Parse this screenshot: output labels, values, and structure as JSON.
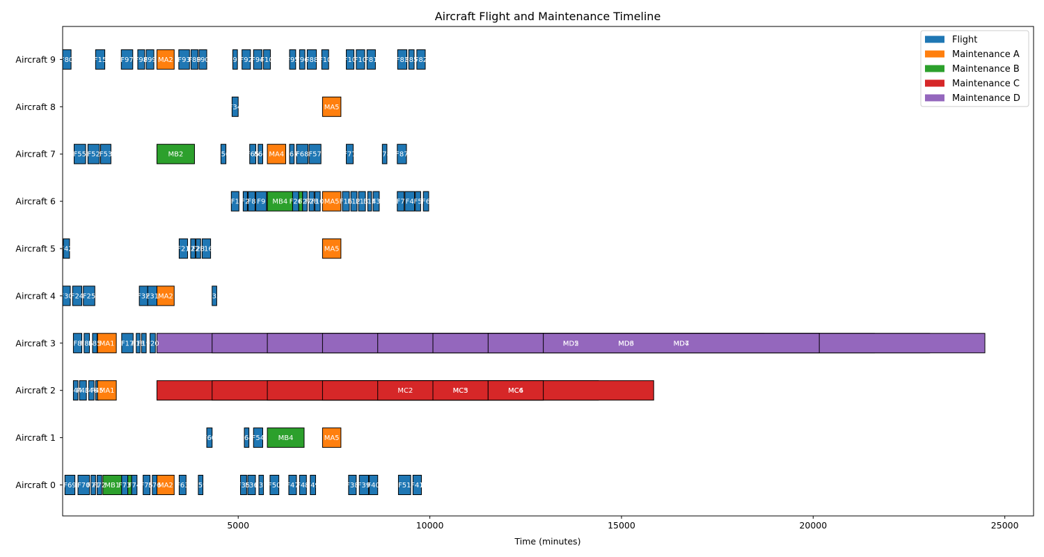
{
  "chart_data": {
    "type": "gantt",
    "title": "Aircraft Flight and Maintenance Timeline",
    "xlabel": "Time (minutes)",
    "ylabel": "",
    "xlim": [
      420,
      25750
    ],
    "xticks": [
      5000,
      10000,
      15000,
      20000,
      25000
    ],
    "y_categories": [
      "Aircraft 0",
      "Aircraft 1",
      "Aircraft 2",
      "Aircraft 3",
      "Aircraft 4",
      "Aircraft 5",
      "Aircraft 6",
      "Aircraft 7",
      "Aircraft 8",
      "Aircraft 9"
    ],
    "grid": false,
    "legend_position": "upper right",
    "legend": [
      {
        "key": "flight",
        "label": "Flight",
        "color": "#1f77b4"
      },
      {
        "key": "maint_a",
        "label": "Maintenance A",
        "color": "#ff7f0e"
      },
      {
        "key": "maint_b",
        "label": "Maintenance B",
        "color": "#2ca02c"
      },
      {
        "key": "maint_c",
        "label": "Maintenance C",
        "color": "#d62728"
      },
      {
        "key": "maint_d",
        "label": "Maintenance D",
        "color": "#9467bd"
      }
    ],
    "tasks": [
      {
        "aircraft": 9,
        "kind": "flight",
        "label": "F80",
        "start": 420,
        "end": 640
      },
      {
        "aircraft": 9,
        "kind": "flight",
        "label": "F15",
        "start": 1280,
        "end": 1520
      },
      {
        "aircraft": 9,
        "kind": "flight",
        "label": "F97",
        "start": 1950,
        "end": 2250
      },
      {
        "aircraft": 9,
        "kind": "flight",
        "label": "F98",
        "start": 2380,
        "end": 2560
      },
      {
        "aircraft": 9,
        "kind": "flight",
        "label": "F99",
        "start": 2600,
        "end": 2800
      },
      {
        "aircraft": 9,
        "kind": "maint_a",
        "label": "MA2",
        "start": 2880,
        "end": 3330
      },
      {
        "aircraft": 9,
        "kind": "flight",
        "label": "F93",
        "start": 3450,
        "end": 3730
      },
      {
        "aircraft": 9,
        "kind": "flight",
        "label": "F89",
        "start": 3770,
        "end": 3950
      },
      {
        "aircraft": 9,
        "kind": "flight",
        "label": "F90",
        "start": 3980,
        "end": 4180
      },
      {
        "aircraft": 9,
        "kind": "flight",
        "label": "F91",
        "start": 4860,
        "end": 4980
      },
      {
        "aircraft": 9,
        "kind": "flight",
        "label": "F92",
        "start": 5100,
        "end": 5320
      },
      {
        "aircraft": 9,
        "kind": "flight",
        "label": "F94",
        "start": 5400,
        "end": 5620
      },
      {
        "aircraft": 9,
        "kind": "flight",
        "label": "F10",
        "start": 5660,
        "end": 5840
      },
      {
        "aircraft": 9,
        "kind": "flight",
        "label": "F95",
        "start": 6340,
        "end": 6500
      },
      {
        "aircraft": 9,
        "kind": "flight",
        "label": "F96",
        "start": 6600,
        "end": 6740
      },
      {
        "aircraft": 9,
        "kind": "flight",
        "label": "F88",
        "start": 6800,
        "end": 7040
      },
      {
        "aircraft": 9,
        "kind": "flight",
        "label": "F10",
        "start": 7180,
        "end": 7360
      },
      {
        "aircraft": 9,
        "kind": "flight",
        "label": "F10",
        "start": 7820,
        "end": 8020
      },
      {
        "aircraft": 9,
        "kind": "flight",
        "label": "F10",
        "start": 8080,
        "end": 8300
      },
      {
        "aircraft": 9,
        "kind": "flight",
        "label": "F81",
        "start": 8360,
        "end": 8580
      },
      {
        "aircraft": 9,
        "kind": "flight",
        "label": "F83",
        "start": 9160,
        "end": 9400
      },
      {
        "aircraft": 9,
        "kind": "flight",
        "label": "F85",
        "start": 9450,
        "end": 9590
      },
      {
        "aircraft": 9,
        "kind": "flight",
        "label": "F82",
        "start": 9660,
        "end": 9880
      },
      {
        "aircraft": 8,
        "kind": "flight",
        "label": "F34",
        "start": 4840,
        "end": 5000
      },
      {
        "aircraft": 8,
        "kind": "maint_a",
        "label": "MA5",
        "start": 7200,
        "end": 7680
      },
      {
        "aircraft": 7,
        "kind": "flight",
        "label": "F55",
        "start": 720,
        "end": 1020
      },
      {
        "aircraft": 7,
        "kind": "flight",
        "label": "F52",
        "start": 1080,
        "end": 1380
      },
      {
        "aircraft": 7,
        "kind": "flight",
        "label": "F53",
        "start": 1410,
        "end": 1680
      },
      {
        "aircraft": 7,
        "kind": "maint_b",
        "label": "MB2",
        "start": 2880,
        "end": 3860
      },
      {
        "aircraft": 7,
        "kind": "flight",
        "label": "F56",
        "start": 4550,
        "end": 4680
      },
      {
        "aircraft": 7,
        "kind": "flight",
        "label": "F65",
        "start": 5300,
        "end": 5460
      },
      {
        "aircraft": 7,
        "kind": "flight",
        "label": "F66",
        "start": 5520,
        "end": 5640
      },
      {
        "aircraft": 7,
        "kind": "maint_a",
        "label": "MA4",
        "start": 5760,
        "end": 6240
      },
      {
        "aircraft": 7,
        "kind": "flight",
        "label": "F67",
        "start": 6340,
        "end": 6460
      },
      {
        "aircraft": 7,
        "kind": "flight",
        "label": "F68",
        "start": 6520,
        "end": 6820
      },
      {
        "aircraft": 7,
        "kind": "flight",
        "label": "F57",
        "start": 6850,
        "end": 7160
      },
      {
        "aircraft": 7,
        "kind": "flight",
        "label": "F77",
        "start": 7820,
        "end": 8000
      },
      {
        "aircraft": 7,
        "kind": "flight",
        "label": "F78",
        "start": 8760,
        "end": 8880
      },
      {
        "aircraft": 7,
        "kind": "flight",
        "label": "F87",
        "start": 9150,
        "end": 9390
      },
      {
        "aircraft": 6,
        "kind": "flight",
        "label": "F1",
        "start": 4820,
        "end": 5020
      },
      {
        "aircraft": 6,
        "kind": "flight",
        "label": "F2",
        "start": 5130,
        "end": 5240
      },
      {
        "aircraft": 6,
        "kind": "flight",
        "label": "F8",
        "start": 5260,
        "end": 5440
      },
      {
        "aircraft": 6,
        "kind": "flight",
        "label": "F9",
        "start": 5460,
        "end": 5740
      },
      {
        "aircraft": 6,
        "kind": "maint_b",
        "label": "MB4",
        "start": 5760,
        "end": 6420
      },
      {
        "aircraft": 6,
        "kind": "flight",
        "label": "F26",
        "start": 6420,
        "end": 6580
      },
      {
        "aircraft": 6,
        "kind": "maint_b",
        "label": "",
        "start": 6580,
        "end": 6680
      },
      {
        "aircraft": 6,
        "kind": "flight",
        "label": "F27",
        "start": 6680,
        "end": 6800
      },
      {
        "aircraft": 6,
        "kind": "flight",
        "label": "F28",
        "start": 6850,
        "end": 6980
      },
      {
        "aircraft": 6,
        "kind": "flight",
        "label": "F10",
        "start": 7000,
        "end": 7140
      },
      {
        "aircraft": 6,
        "kind": "maint_a",
        "label": "MA5",
        "start": 7200,
        "end": 7680
      },
      {
        "aircraft": 6,
        "kind": "flight",
        "label": "F16",
        "start": 7720,
        "end": 7900
      },
      {
        "aircraft": 6,
        "kind": "flight",
        "label": "F12",
        "start": 7940,
        "end": 8100
      },
      {
        "aircraft": 6,
        "kind": "flight",
        "label": "F13",
        "start": 8140,
        "end": 8320
      },
      {
        "aircraft": 6,
        "kind": "flight",
        "label": "F14",
        "start": 8380,
        "end": 8480
      },
      {
        "aircraft": 6,
        "kind": "flight",
        "label": "F3",
        "start": 8520,
        "end": 8680
      },
      {
        "aircraft": 6,
        "kind": "flight",
        "label": "F7",
        "start": 9150,
        "end": 9330
      },
      {
        "aircraft": 6,
        "kind": "flight",
        "label": "F4",
        "start": 9350,
        "end": 9600
      },
      {
        "aircraft": 6,
        "kind": "flight",
        "label": "F5",
        "start": 9620,
        "end": 9760
      },
      {
        "aircraft": 6,
        "kind": "flight",
        "label": "F6",
        "start": 9830,
        "end": 9970
      },
      {
        "aircraft": 5,
        "kind": "flight",
        "label": "F42",
        "start": 440,
        "end": 600
      },
      {
        "aircraft": 5,
        "kind": "flight",
        "label": "F21",
        "start": 3460,
        "end": 3680
      },
      {
        "aircraft": 5,
        "kind": "flight",
        "label": "F22",
        "start": 3760,
        "end": 3880
      },
      {
        "aircraft": 5,
        "kind": "flight",
        "label": "F23",
        "start": 3900,
        "end": 4020
      },
      {
        "aircraft": 5,
        "kind": "flight",
        "label": "F16",
        "start": 4060,
        "end": 4280
      },
      {
        "aircraft": 5,
        "kind": "maint_a",
        "label": "MA5",
        "start": 7200,
        "end": 7680
      },
      {
        "aircraft": 4,
        "kind": "flight",
        "label": "F30",
        "start": 420,
        "end": 620
      },
      {
        "aircraft": 4,
        "kind": "flight",
        "label": "F24",
        "start": 680,
        "end": 920
      },
      {
        "aircraft": 4,
        "kind": "flight",
        "label": "F25",
        "start": 960,
        "end": 1260
      },
      {
        "aircraft": 4,
        "kind": "flight",
        "label": "F32",
        "start": 2420,
        "end": 2640
      },
      {
        "aircraft": 4,
        "kind": "flight",
        "label": "F31",
        "start": 2640,
        "end": 2880
      },
      {
        "aircraft": 4,
        "kind": "maint_a",
        "label": "MA2",
        "start": 2880,
        "end": 3330
      },
      {
        "aircraft": 4,
        "kind": "flight",
        "label": "F33",
        "start": 4320,
        "end": 4440
      },
      {
        "aircraft": 3,
        "kind": "flight",
        "label": "F8",
        "start": 700,
        "end": 920
      },
      {
        "aircraft": 3,
        "kind": "flight",
        "label": "F85",
        "start": 980,
        "end": 1120
      },
      {
        "aircraft": 3,
        "kind": "flight",
        "label": "F85",
        "start": 1200,
        "end": 1320
      },
      {
        "aircraft": 3,
        "kind": "maint_a",
        "label": "MA1",
        "start": 1330,
        "end": 1820
      },
      {
        "aircraft": 3,
        "kind": "flight",
        "label": "F17",
        "start": 1960,
        "end": 2260
      },
      {
        "aircraft": 3,
        "kind": "flight",
        "label": "F18",
        "start": 2340,
        "end": 2440
      },
      {
        "aircraft": 3,
        "kind": "flight",
        "label": "F19",
        "start": 2480,
        "end": 2600
      },
      {
        "aircraft": 3,
        "kind": "flight",
        "label": "F20",
        "start": 2700,
        "end": 2840
      },
      {
        "aircraft": 3,
        "kind": "maint_d",
        "label": "",
        "start": 2880,
        "end": 18720
      },
      {
        "aircraft": 3,
        "kind": "maint_d",
        "label": "",
        "start": 4320,
        "end": 20160
      },
      {
        "aircraft": 3,
        "kind": "maint_d",
        "label": "MD2",
        "start": 5760,
        "end": 21600
      },
      {
        "aircraft": 3,
        "kind": "maint_d",
        "label": "MD3",
        "start": 7200,
        "end": 23040
      },
      {
        "aircraft": 3,
        "kind": "maint_d",
        "label": "MD4",
        "start": 8640,
        "end": 24480
      },
      {
        "aircraft": 3,
        "kind": "maint_d",
        "label": "MD5",
        "start": 10080,
        "end": 17280
      },
      {
        "aircraft": 3,
        "kind": "maint_d",
        "label": "MD6",
        "start": 11520,
        "end": 18720
      },
      {
        "aircraft": 3,
        "kind": "maint_d",
        "label": "MD7",
        "start": 12960,
        "end": 20160
      },
      {
        "aircraft": 2,
        "kind": "flight",
        "label": "F44",
        "start": 700,
        "end": 820
      },
      {
        "aircraft": 2,
        "kind": "flight",
        "label": "F43",
        "start": 860,
        "end": 1040
      },
      {
        "aircraft": 2,
        "kind": "flight",
        "label": "F46",
        "start": 1100,
        "end": 1240
      },
      {
        "aircraft": 2,
        "kind": "flight",
        "label": "F45",
        "start": 1280,
        "end": 1360
      },
      {
        "aircraft": 2,
        "kind": "maint_a",
        "label": "MA1",
        "start": 1330,
        "end": 1820
      },
      {
        "aircraft": 2,
        "kind": "maint_c",
        "label": "",
        "start": 2880,
        "end": 10080
      },
      {
        "aircraft": 2,
        "kind": "maint_c",
        "label": "",
        "start": 4320,
        "end": 11520
      },
      {
        "aircraft": 2,
        "kind": "maint_c",
        "label": "MC2",
        "start": 5760,
        "end": 12960
      },
      {
        "aircraft": 2,
        "kind": "maint_c",
        "label": "MC3",
        "start": 7200,
        "end": 14400
      },
      {
        "aircraft": 2,
        "kind": "maint_c",
        "label": "MC4",
        "start": 8640,
        "end": 15840
      },
      {
        "aircraft": 2,
        "kind": "maint_c",
        "label": "MC5",
        "start": 10080,
        "end": 11520
      },
      {
        "aircraft": 2,
        "kind": "maint_c",
        "label": "MC6",
        "start": 11520,
        "end": 12960
      },
      {
        "aircraft": 1,
        "kind": "flight",
        "label": "F60",
        "start": 4180,
        "end": 4320
      },
      {
        "aircraft": 1,
        "kind": "flight",
        "label": "F64",
        "start": 5160,
        "end": 5280
      },
      {
        "aircraft": 1,
        "kind": "flight",
        "label": "F54",
        "start": 5400,
        "end": 5640
      },
      {
        "aircraft": 1,
        "kind": "maint_b",
        "label": "MB4",
        "start": 5760,
        "end": 6720
      },
      {
        "aircraft": 1,
        "kind": "maint_a",
        "label": "MA5",
        "start": 7200,
        "end": 7680
      },
      {
        "aircraft": 0,
        "kind": "flight",
        "label": "F69",
        "start": 480,
        "end": 740
      },
      {
        "aircraft": 0,
        "kind": "flight",
        "label": "F70",
        "start": 820,
        "end": 1120
      },
      {
        "aircraft": 0,
        "kind": "flight",
        "label": "F71",
        "start": 1160,
        "end": 1280
      },
      {
        "aircraft": 0,
        "kind": "flight",
        "label": "F72",
        "start": 1320,
        "end": 1440
      },
      {
        "aircraft": 0,
        "kind": "maint_b",
        "label": "MB1",
        "start": 1470,
        "end": 1960
      },
      {
        "aircraft": 0,
        "kind": "flight",
        "label": "F73",
        "start": 1960,
        "end": 2120
      },
      {
        "aircraft": 0,
        "kind": "maint_b",
        "label": "",
        "start": 2120,
        "end": 2220
      },
      {
        "aircraft": 0,
        "kind": "flight",
        "label": "F74",
        "start": 2220,
        "end": 2360
      },
      {
        "aircraft": 0,
        "kind": "flight",
        "label": "F75",
        "start": 2520,
        "end": 2700
      },
      {
        "aircraft": 0,
        "kind": "flight",
        "label": "F76",
        "start": 2760,
        "end": 2880
      },
      {
        "aircraft": 0,
        "kind": "maint_a",
        "label": "MA2",
        "start": 2880,
        "end": 3330
      },
      {
        "aircraft": 0,
        "kind": "flight",
        "label": "F63",
        "start": 3460,
        "end": 3640
      },
      {
        "aircraft": 0,
        "kind": "flight",
        "label": "F59",
        "start": 3960,
        "end": 4080
      },
      {
        "aircraft": 0,
        "kind": "flight",
        "label": "F35",
        "start": 5060,
        "end": 5220
      },
      {
        "aircraft": 0,
        "kind": "flight",
        "label": "F36",
        "start": 5250,
        "end": 5450
      },
      {
        "aircraft": 0,
        "kind": "flight",
        "label": "F37",
        "start": 5540,
        "end": 5660
      },
      {
        "aircraft": 0,
        "kind": "flight",
        "label": "F50",
        "start": 5830,
        "end": 6060
      },
      {
        "aircraft": 0,
        "kind": "flight",
        "label": "F47",
        "start": 6320,
        "end": 6520
      },
      {
        "aircraft": 0,
        "kind": "flight",
        "label": "F48",
        "start": 6600,
        "end": 6780
      },
      {
        "aircraft": 0,
        "kind": "flight",
        "label": "F49",
        "start": 6880,
        "end": 7020
      },
      {
        "aircraft": 0,
        "kind": "flight",
        "label": "F38",
        "start": 7880,
        "end": 8080
      },
      {
        "aircraft": 0,
        "kind": "flight",
        "label": "F39",
        "start": 8160,
        "end": 8400
      },
      {
        "aircraft": 0,
        "kind": "flight",
        "label": "F40",
        "start": 8420,
        "end": 8640
      },
      {
        "aircraft": 0,
        "kind": "flight",
        "label": "F51",
        "start": 9180,
        "end": 9500
      },
      {
        "aircraft": 0,
        "kind": "flight",
        "label": "F41",
        "start": 9560,
        "end": 9780
      }
    ]
  }
}
